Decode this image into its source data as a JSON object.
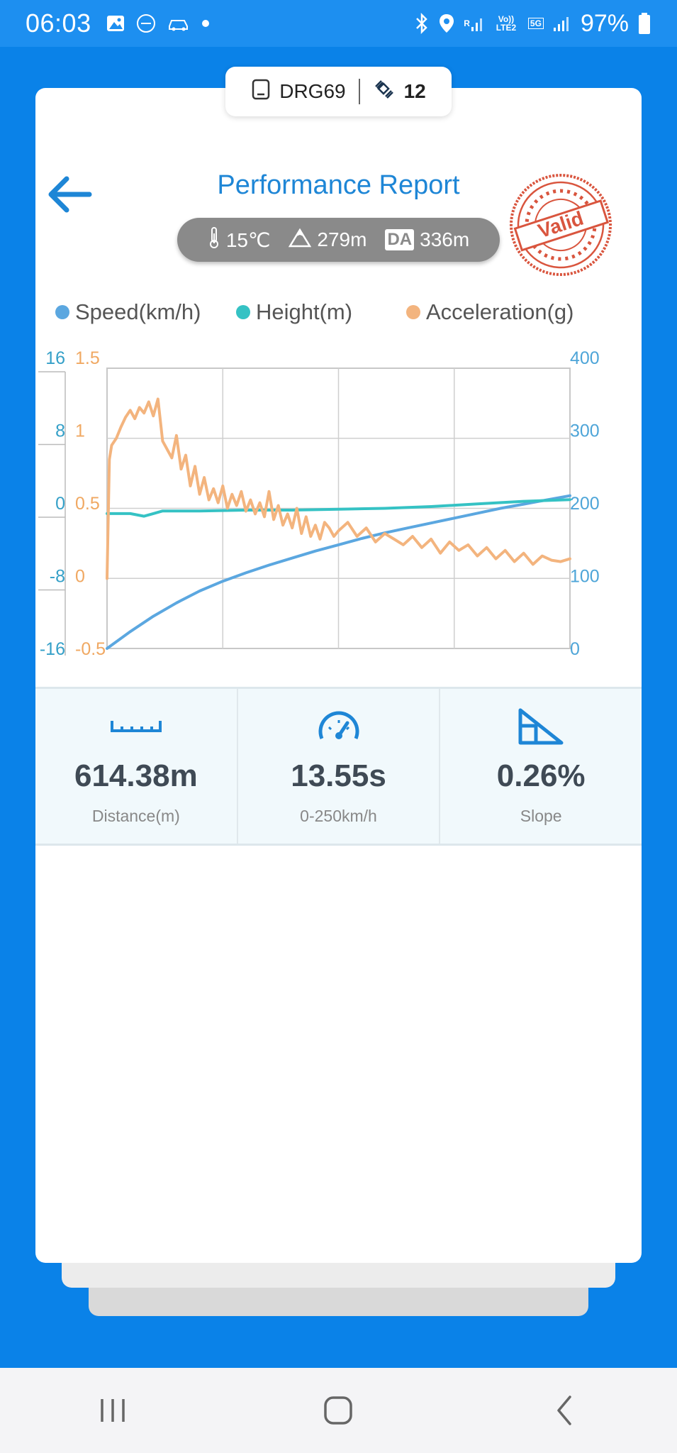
{
  "status_bar": {
    "time": "06:03",
    "battery": "97%",
    "net_r": "R",
    "volte": "Vo)) LTE2",
    "fiveg": "5G"
  },
  "device": {
    "name": "DRG69",
    "satellites": "12"
  },
  "header": {
    "title": "Performance Report",
    "stamp_text": "Valid"
  },
  "conditions": {
    "temperature": "15℃",
    "altitude": "279m",
    "da_label": "DA",
    "density_altitude": "336m"
  },
  "legend": [
    {
      "label": "Speed(km/h)",
      "color": "#5ba7e0"
    },
    {
      "label": "Height(m)",
      "color": "#35c2c4"
    },
    {
      "label": "Acceleration(g)",
      "color": "#f3b47e"
    }
  ],
  "chart_data": {
    "type": "line",
    "height_axis": {
      "ticks": [
        "16",
        "8",
        "0",
        "-8",
        "-16"
      ],
      "range": [
        -16,
        16
      ]
    },
    "accel_axis": {
      "ticks": [
        "1.5",
        "1",
        "0.5",
        "0",
        "-0.5"
      ],
      "range": [
        -0.5,
        1.5
      ]
    },
    "speed_axis": {
      "ticks": [
        "400",
        "300",
        "200",
        "100",
        "0"
      ],
      "range": [
        0,
        400
      ]
    },
    "x_range": [
      0,
      100
    ],
    "series": [
      {
        "name": "Speed(km/h)",
        "axis": "speed",
        "color": "#5ba7e0",
        "x": [
          0,
          5,
          10,
          15,
          20,
          25,
          30,
          35,
          40,
          45,
          50,
          55,
          60,
          65,
          70,
          75,
          80,
          85,
          90,
          95,
          100
        ],
        "y": [
          0,
          24,
          46,
          65,
          82,
          96,
          108,
          119,
          129,
          139,
          148,
          157,
          165,
          172,
          179,
          186,
          193,
          200,
          206,
          212,
          218
        ]
      },
      {
        "name": "Height(m)",
        "axis": "height",
        "color": "#35c2c4",
        "x": [
          0,
          5,
          8,
          10,
          12,
          20,
          30,
          40,
          50,
          60,
          70,
          80,
          90,
          100
        ],
        "y": [
          -0.6,
          -0.6,
          -0.9,
          -0.6,
          -0.3,
          -0.3,
          -0.2,
          -0.2,
          -0.1,
          0,
          0.2,
          0.5,
          0.8,
          1.0
        ]
      },
      {
        "name": "Acceleration(g)",
        "axis": "accel",
        "color": "#f3b47e",
        "x": [
          0,
          0.5,
          1,
          2,
          3,
          4,
          5,
          6,
          7,
          8,
          9,
          10,
          11,
          12,
          13,
          14,
          15,
          16,
          17,
          18,
          19,
          20,
          21,
          22,
          23,
          24,
          25,
          26,
          27,
          28,
          29,
          30,
          31,
          32,
          33,
          34,
          35,
          36,
          37,
          38,
          39,
          40,
          41,
          42,
          43,
          44,
          45,
          46,
          47,
          48,
          49,
          50,
          52,
          54,
          56,
          58,
          60,
          62,
          64,
          66,
          68,
          70,
          72,
          74,
          76,
          78,
          80,
          82,
          84,
          86,
          88,
          90,
          92,
          94,
          96,
          98,
          100
        ],
        "y": [
          0,
          0.85,
          0.95,
          1.0,
          1.08,
          1.15,
          1.2,
          1.14,
          1.22,
          1.18,
          1.26,
          1.16,
          1.28,
          0.98,
          0.92,
          0.86,
          1.02,
          0.78,
          0.88,
          0.66,
          0.8,
          0.6,
          0.72,
          0.56,
          0.64,
          0.54,
          0.66,
          0.5,
          0.6,
          0.52,
          0.62,
          0.48,
          0.56,
          0.46,
          0.54,
          0.44,
          0.62,
          0.42,
          0.52,
          0.38,
          0.46,
          0.36,
          0.5,
          0.32,
          0.44,
          0.3,
          0.38,
          0.28,
          0.4,
          0.36,
          0.3,
          0.34,
          0.4,
          0.3,
          0.36,
          0.26,
          0.32,
          0.28,
          0.24,
          0.3,
          0.22,
          0.28,
          0.18,
          0.26,
          0.2,
          0.24,
          0.16,
          0.22,
          0.14,
          0.2,
          0.12,
          0.18,
          0.1,
          0.16,
          0.13,
          0.12,
          0.14
        ]
      }
    ]
  },
  "stats": [
    {
      "value": "614.38m",
      "label": "Distance(m)",
      "icon": "ruler-icon"
    },
    {
      "value": "13.55s",
      "label": "0-250km/h",
      "icon": "speedometer-icon"
    },
    {
      "value": "0.26%",
      "label": "Slope",
      "icon": "slope-icon"
    }
  ],
  "nav": {
    "recent": "recent-apps-icon",
    "home": "home-icon",
    "back": "back-nav-icon"
  }
}
